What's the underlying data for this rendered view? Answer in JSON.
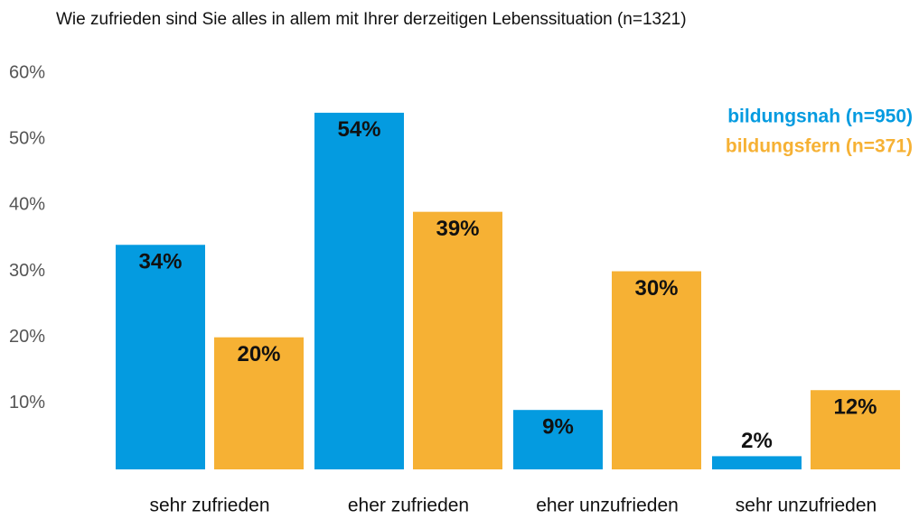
{
  "chart_data": {
    "type": "bar",
    "title": "Wie zufrieden sind Sie alles in allem mit Ihrer derzeitigen Lebenssituation (n=1321)",
    "categories": [
      "sehr zufrieden",
      "eher zufrieden",
      "eher unzufrieden",
      "sehr unzufrieden"
    ],
    "series": [
      {
        "name": "bildungsnah (n=950)",
        "color": "#049be0",
        "values": [
          34,
          54,
          9,
          2
        ],
        "value_labels": [
          "34%",
          "54%",
          "9%",
          "2%"
        ]
      },
      {
        "name": "bildungsfern (n=371)",
        "color": "#f6b134",
        "values": [
          20,
          39,
          30,
          12
        ],
        "value_labels": [
          "20%",
          "39%",
          "30%",
          "12%"
        ]
      }
    ],
    "ylim": [
      -3,
      60
    ],
    "yticks": [
      {
        "value": 10,
        "label": "10%"
      },
      {
        "value": 20,
        "label": "20%"
      },
      {
        "value": 30,
        "label": "30%"
      },
      {
        "value": 40,
        "label": "40%"
      },
      {
        "value": 50,
        "label": "50%"
      },
      {
        "value": 60,
        "label": "60%"
      }
    ],
    "grid": false,
    "legend": "top-right"
  }
}
